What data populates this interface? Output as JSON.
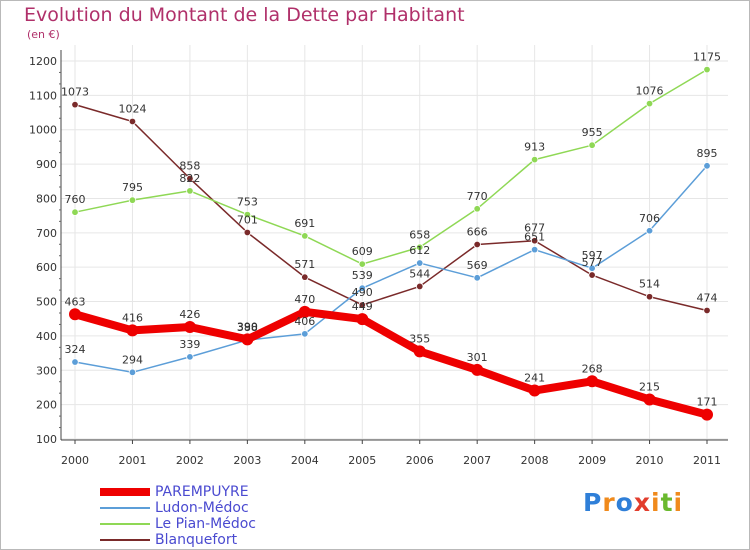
{
  "header": {
    "title": "Evolution du Montant de la Dette par Habitant",
    "unit": "(en €)"
  },
  "logo": {
    "letters": [
      "P",
      "r",
      "o",
      "x",
      "i",
      "t",
      "i"
    ],
    "colors": [
      "#2f7fd8",
      "#f08a1c",
      "#2f7fd8",
      "#e23d2d",
      "#f08a1c",
      "#6ab92e",
      "#f08a1c"
    ]
  },
  "chart_data": {
    "type": "line",
    "x": [
      "2000",
      "2001",
      "2002",
      "2003",
      "2004",
      "2005",
      "2006",
      "2007",
      "2008",
      "2009",
      "2010",
      "2011"
    ],
    "ylim": [
      100,
      1200
    ],
    "yticks": [
      100,
      200,
      300,
      400,
      500,
      600,
      700,
      800,
      900,
      1000,
      1100,
      1200
    ],
    "grid": true,
    "series": [
      {
        "name": "PAREMPUYRE",
        "color": "#ee0000",
        "values": [
          463,
          416,
          426,
          390,
          470,
          449,
          355,
          301,
          241,
          268,
          215,
          171
        ]
      },
      {
        "name": "Ludon-Médoc",
        "color": "#5c9ed8",
        "values": [
          324,
          294,
          339,
          388,
          406,
          539,
          612,
          569,
          651,
          597,
          706,
          895
        ]
      },
      {
        "name": "Le Pian-Médoc",
        "color": "#8fd855",
        "values": [
          760,
          795,
          822,
          753,
          691,
          609,
          658,
          770,
          913,
          955,
          1076,
          1175
        ]
      },
      {
        "name": "Blanquefort",
        "color": "#7a2a2a",
        "values": [
          1073,
          1024,
          858,
          701,
          571,
          490,
          544,
          666,
          677,
          577,
          514,
          474
        ]
      }
    ]
  }
}
